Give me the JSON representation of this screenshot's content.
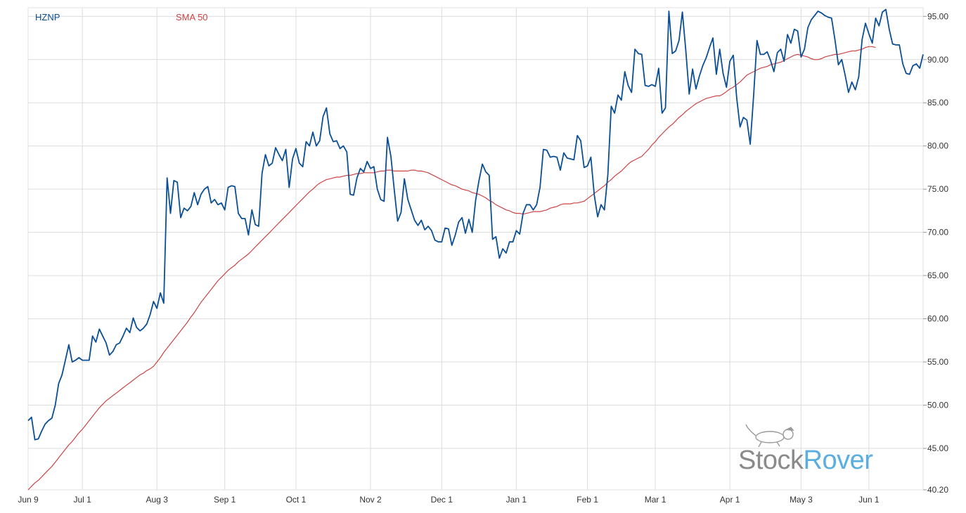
{
  "legend": {
    "series1_label": "HZNP",
    "series2_label": "SMA 50"
  },
  "watermark": {
    "brand_part1": "Stock",
    "brand_part2": "Rover",
    "icon": "dog-icon"
  },
  "colors": {
    "price": "#0a4f96",
    "sma": "#cc4444",
    "grid": "#dcdcdc",
    "brand_gray": "#8a8a8a",
    "brand_blue": "#5aaee0"
  },
  "chart_data": {
    "type": "line",
    "title": "",
    "xlabel": "",
    "ylabel": "",
    "ylim": [
      40.2,
      96.0
    ],
    "y_ticks": [
      95.0,
      90.0,
      85.0,
      80.0,
      75.0,
      70.0,
      65.0,
      60.0,
      55.0,
      50.0,
      45.0,
      40.2
    ],
    "y_tick_labels": [
      "95.00",
      "90.00",
      "85.00",
      "80.00",
      "75.00",
      "70.00",
      "65.00",
      "60.00",
      "55.00",
      "50.00",
      "45.00",
      "40.20"
    ],
    "x_tick_labels": [
      "Jun 9",
      "Jul 1",
      "Aug 3",
      "Sep 1",
      "Oct 1",
      "Nov 2",
      "Dec 1",
      "Jan 1",
      "Feb 1",
      "Mar 1",
      "Apr 1",
      "May 3",
      "Jun 1"
    ],
    "x_tick_index": [
      0,
      16,
      38,
      58,
      79,
      101,
      122,
      144,
      165,
      185,
      207,
      228,
      248
    ],
    "grid": true,
    "legend_position": "top-left",
    "x": "trading-day index 0–253 (Jun 9 to ~Jun 8)",
    "series": [
      {
        "name": "HZNP",
        "values": [
          48.2,
          48.6,
          46.0,
          46.1,
          47.0,
          47.8,
          48.2,
          48.5,
          50.0,
          52.5,
          53.5,
          55.2,
          57.0,
          55.0,
          55.2,
          55.5,
          55.2,
          55.2,
          55.2,
          58.0,
          57.3,
          58.8,
          58.0,
          57.2,
          55.8,
          56.2,
          57.0,
          57.2,
          58.0,
          58.9,
          58.4,
          60.1,
          59.0,
          58.6,
          58.9,
          59.4,
          60.5,
          62.0,
          61.2,
          63.0,
          61.8,
          76.3,
          72.2,
          76.0,
          75.8,
          71.7,
          72.8,
          72.5,
          73.0,
          74.6,
          73.2,
          74.4,
          75.0,
          75.3,
          73.4,
          73.8,
          73.2,
          73.4,
          72.6,
          75.2,
          75.4,
          75.3,
          72.2,
          71.6,
          71.6,
          69.7,
          72.6,
          70.9,
          70.7,
          76.8,
          79.0,
          77.7,
          78.0,
          79.8,
          79.0,
          78.3,
          79.6,
          75.2,
          78.5,
          79.7,
          78.0,
          77.6,
          80.5,
          80.0,
          81.6,
          80.0,
          80.6,
          83.4,
          84.4,
          81.4,
          80.5,
          80.6,
          79.7,
          80.0,
          79.3,
          74.4,
          74.3,
          76.3,
          77.4,
          77.0,
          78.2,
          77.4,
          77.6,
          75.0,
          73.8,
          73.6,
          81.0,
          78.8,
          74.9,
          71.3,
          72.3,
          76.2,
          73.8,
          72.6,
          71.4,
          70.8,
          71.4,
          70.3,
          70.7,
          70.2,
          69.1,
          68.9,
          68.9,
          70.5,
          70.4,
          68.5,
          69.7,
          71.2,
          71.7,
          69.9,
          71.5,
          70.0,
          73.7,
          76.0,
          77.9,
          77.0,
          76.6,
          69.2,
          69.5,
          67.0,
          68.1,
          67.6,
          68.9,
          68.9,
          70.2,
          69.8,
          72.2,
          73.2,
          73.2,
          72.6,
          73.2,
          75.2,
          79.6,
          79.5,
          78.7,
          78.8,
          78.7,
          77.2,
          79.2,
          78.6,
          78.5,
          78.4,
          81.2,
          80.6,
          77.5,
          77.7,
          78.7,
          74.3,
          71.8,
          73.2,
          72.6,
          76.7,
          84.6,
          83.8,
          85.9,
          85.3,
          88.6,
          87.0,
          86.2,
          91.2,
          90.7,
          90.6,
          87.0,
          86.9,
          87.1,
          86.9,
          89.0,
          83.8,
          84.4,
          95.6,
          90.7,
          91.0,
          92.2,
          95.5,
          91.0,
          86.0,
          88.9,
          86.6,
          88.1,
          89.3,
          90.2,
          91.4,
          92.5,
          88.3,
          91.2,
          88.4,
          86.8,
          89.8,
          90.5,
          85.6,
          82.2,
          83.3,
          83.0,
          80.2,
          85.8,
          92.2,
          90.6,
          90.6,
          90.9,
          89.9,
          88.6,
          90.8,
          91.2,
          89.8,
          92.9,
          91.9,
          93.5,
          93.3,
          90.3,
          91.2,
          93.7,
          94.6,
          95.1,
          95.6,
          95.4,
          95.1,
          94.9,
          94.8,
          92.3,
          89.4,
          90.0,
          88.2,
          86.2,
          87.4,
          86.5,
          88.0,
          92.3,
          94.2,
          93.0,
          91.9,
          94.8,
          93.9,
          95.5,
          95.8,
          93.5,
          91.8,
          91.7,
          91.7,
          89.5,
          88.4,
          88.3,
          89.3,
          89.5,
          89.0,
          90.6
        ]
      },
      {
        "name": "SMA 50",
        "values": [
          40.2,
          40.6,
          41.0,
          41.3,
          41.7,
          42.1,
          42.5,
          42.9,
          43.4,
          43.9,
          44.4,
          44.9,
          45.4,
          45.8,
          46.3,
          46.8,
          47.2,
          47.7,
          48.2,
          48.7,
          49.2,
          49.7,
          50.1,
          50.5,
          50.8,
          51.1,
          51.4,
          51.7,
          52.0,
          52.3,
          52.6,
          52.9,
          53.2,
          53.5,
          53.7,
          54.0,
          54.2,
          54.5,
          55.0,
          55.5,
          56.1,
          56.6,
          57.1,
          57.6,
          58.1,
          58.6,
          59.1,
          59.6,
          60.2,
          60.7,
          61.3,
          61.9,
          62.4,
          62.9,
          63.4,
          63.9,
          64.4,
          64.8,
          65.2,
          65.6,
          65.9,
          66.2,
          66.6,
          66.9,
          67.2,
          67.5,
          67.9,
          68.3,
          68.7,
          69.1,
          69.5,
          69.9,
          70.3,
          70.7,
          71.1,
          71.5,
          71.9,
          72.3,
          72.7,
          73.1,
          73.5,
          73.9,
          74.3,
          74.7,
          75.0,
          75.4,
          75.7,
          75.9,
          76.1,
          76.2,
          76.3,
          76.4,
          76.4,
          76.5,
          76.6,
          76.6,
          76.7,
          76.8,
          76.8,
          76.9,
          76.9,
          76.9,
          76.9,
          77.0,
          77.1,
          77.1,
          77.2,
          77.2,
          77.1,
          77.1,
          77.1,
          77.1,
          77.1,
          77.2,
          77.2,
          77.1,
          77.1,
          77.0,
          76.9,
          76.7,
          76.5,
          76.3,
          76.1,
          75.9,
          75.7,
          75.5,
          75.4,
          75.2,
          75.0,
          74.9,
          74.8,
          74.6,
          74.5,
          74.4,
          74.2,
          74.0,
          73.7,
          73.5,
          73.2,
          73.0,
          72.8,
          72.6,
          72.5,
          72.3,
          72.2,
          72.2,
          72.1,
          72.2,
          72.3,
          72.4,
          72.4,
          72.4,
          72.5,
          72.6,
          72.8,
          72.9,
          73.0,
          73.2,
          73.3,
          73.3,
          73.3,
          73.4,
          73.4,
          73.5,
          73.6,
          73.9,
          74.2,
          74.5,
          74.8,
          75.1,
          75.4,
          75.8,
          76.1,
          76.5,
          76.8,
          77.1,
          77.5,
          77.9,
          78.2,
          78.4,
          78.6,
          78.8,
          79.2,
          79.6,
          80.1,
          80.5,
          81.0,
          81.4,
          81.8,
          82.2,
          82.5,
          82.9,
          83.3,
          83.6,
          84.0,
          84.3,
          84.6,
          84.9,
          85.1,
          85.3,
          85.5,
          85.6,
          85.7,
          85.8,
          85.8,
          86.0,
          86.3,
          86.6,
          86.8,
          87.1,
          87.4,
          87.8,
          88.2,
          88.4,
          88.6,
          88.8,
          89.0,
          89.1,
          89.2,
          89.4,
          89.5,
          89.6,
          89.7,
          89.9,
          90.1,
          90.3,
          90.5,
          90.6,
          90.5,
          90.4,
          90.3,
          90.1,
          90.0,
          90.0,
          90.1,
          90.3,
          90.4,
          90.5,
          90.6,
          90.6,
          90.7,
          90.8,
          90.9,
          91.0,
          91.0,
          91.1,
          91.2,
          91.4,
          91.5,
          91.5,
          91.4
        ]
      }
    ]
  }
}
